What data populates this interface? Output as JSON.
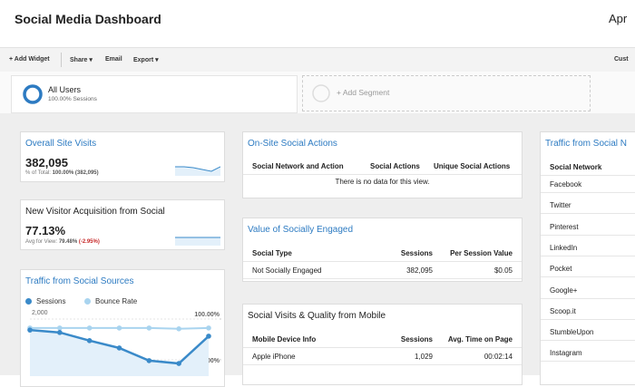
{
  "header": {
    "title": "Social Media Dashboard",
    "date": "Apr"
  },
  "toolbar": {
    "add_widget": "+ Add Widget",
    "share": "Share",
    "email": "Email",
    "export": "Export",
    "customize": "Cust"
  },
  "segments": {
    "active": {
      "name": "All Users",
      "detail": "100.00% Sessions"
    },
    "add": "+ Add Segment"
  },
  "widgets": {
    "overall_visits": {
      "title": "Overall Site Visits",
      "value": "382,095",
      "note_label": "% of Total:",
      "note_value": "100.00% (382,095)"
    },
    "new_visitor": {
      "title": "New Visitor Acquisition from Social",
      "value": "77.13%",
      "note_label": "Avg for View:",
      "note_value": "79.48%",
      "note_change": "(-2.95%)"
    },
    "social_sources": {
      "title": "Traffic from Social Sources",
      "chart_data": {
        "type": "line",
        "categories": [
          null,
          null,
          null,
          null,
          null,
          null,
          null
        ],
        "series": [
          {
            "name": "Sessions",
            "color": "#3a8ac9",
            "values": [
              1730,
              1670,
              1470,
              1290,
              980,
              910,
              1580
            ]
          },
          {
            "name": "Bounce Rate",
            "color": "#a9d4ef",
            "axis": "y2",
            "values": [
              89,
              89,
              89,
              89,
              89,
              88,
              89
            ]
          }
        ],
        "ylim": [
          800,
          2200
        ],
        "yticks": [
          {
            "value": 1000,
            "label": "1,000"
          },
          {
            "value": 2000,
            "label": "2,000"
          }
        ],
        "y2lim": [
          40,
          110
        ],
        "y2ticks": [
          {
            "value": 50,
            "label": "50.00%"
          },
          {
            "value": 100,
            "label": "100.00%"
          }
        ],
        "grid": true
      }
    },
    "onsite_actions": {
      "title": "On-Site Social Actions",
      "columns": [
        "Social Network and Action",
        "Social Actions",
        "Unique Social Actions"
      ],
      "empty": "There is no data for this view."
    },
    "socially_engaged": {
      "title": "Value of Socially Engaged",
      "columns": [
        "Social Type",
        "Sessions",
        "Per Session Value"
      ],
      "rows": [
        [
          "Not Socially Engaged",
          "382,095",
          "$0.05"
        ]
      ]
    },
    "mobile": {
      "title": "Social Visits & Quality from Mobile",
      "columns": [
        "Mobile Device Info",
        "Sessions",
        "Avg. Time on Page"
      ],
      "rows": [
        [
          "Apple iPhone",
          "1,029",
          "00:02:14"
        ]
      ]
    },
    "social_network": {
      "title": "Traffic from Social N",
      "columns": [
        "Social Network"
      ],
      "rows": [
        "Facebook",
        "Twitter",
        "Pinterest",
        "LinkedIn",
        "Pocket",
        "Google+",
        "Scoop.it",
        "StumbleUpon",
        "Instagram"
      ]
    }
  }
}
